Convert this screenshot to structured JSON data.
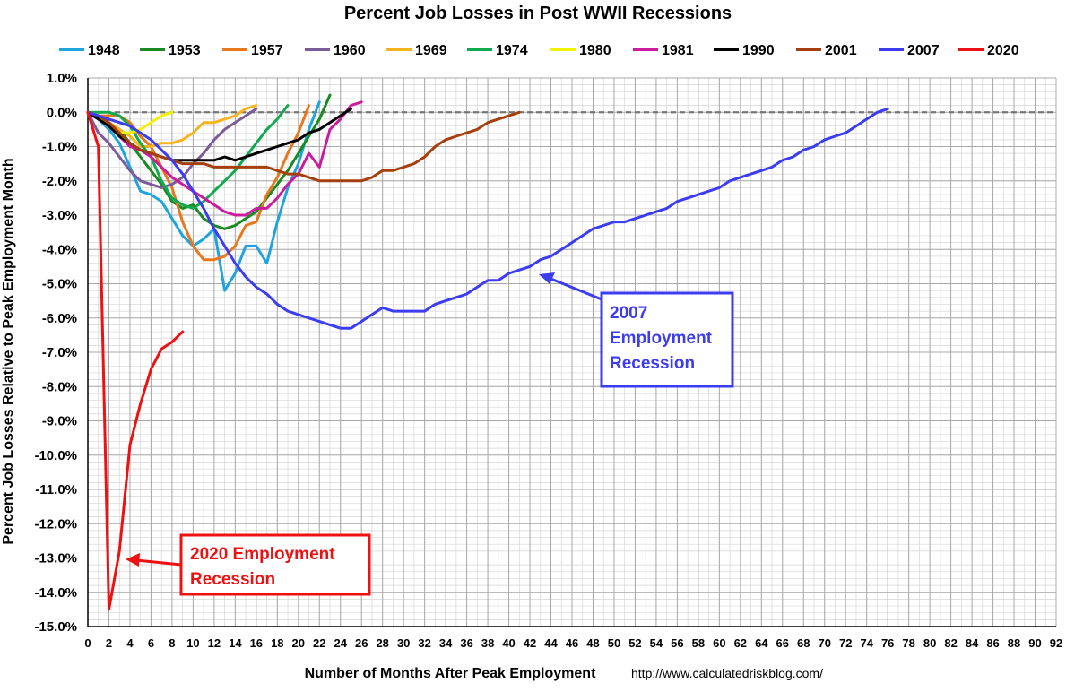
{
  "chart_data": {
    "type": "line",
    "title": "Percent Job Losses in Post WWII Recessions",
    "xlabel": "Number of Months After Peak Employment",
    "ylabel": "Percent Job Losses Relative to Peak Employment Month",
    "source_text": "http://www.calculatedriskblog.com/",
    "xlim": [
      0,
      92
    ],
    "ylim": [
      -15,
      1
    ],
    "x_ticks": [
      "0",
      "2",
      "4",
      "6",
      "8",
      "10",
      "12",
      "14",
      "16",
      "18",
      "20",
      "22",
      "24",
      "26",
      "28",
      "30",
      "32",
      "34",
      "36",
      "38",
      "40",
      "42",
      "44",
      "46",
      "48",
      "50",
      "52",
      "54",
      "56",
      "58",
      "60",
      "62",
      "64",
      "66",
      "68",
      "70",
      "72",
      "74",
      "76",
      "78",
      "80",
      "82",
      "84",
      "86",
      "88",
      "90",
      "92"
    ],
    "y_ticks": [
      "1.0%",
      "0.0%",
      "-1.0%",
      "-2.0%",
      "-3.0%",
      "-4.0%",
      "-5.0%",
      "-6.0%",
      "-7.0%",
      "-8.0%",
      "-9.0%",
      "-10.0%",
      "-11.0%",
      "-12.0%",
      "-13.0%",
      "-14.0%",
      "-15.0%"
    ],
    "grid": true,
    "legend_position": "top",
    "series": [
      {
        "name": "1948",
        "color": "#1fa5dc",
        "values": [
          0,
          -0.2,
          -0.5,
          -0.9,
          -1.6,
          -2.3,
          -2.4,
          -2.6,
          -3.1,
          -3.6,
          -3.9,
          -3.7,
          -3.4,
          -5.2,
          -4.7,
          -3.9,
          -3.9,
          -4.4,
          -3.2,
          -2.2,
          -1.5,
          -0.5,
          0.3
        ]
      },
      {
        "name": "1953",
        "color": "#1a8a22",
        "values": [
          0,
          -0.1,
          -0.3,
          -0.5,
          -0.9,
          -1.3,
          -1.7,
          -2.1,
          -2.6,
          -2.8,
          -2.7,
          -3.1,
          -3.3,
          -3.4,
          -3.3,
          -3.1,
          -2.9,
          -2.5,
          -2.1,
          -1.7,
          -1.2,
          -0.7,
          -0.2,
          0.5
        ]
      },
      {
        "name": "1957",
        "color": "#e8781e",
        "values": [
          0,
          -0.1,
          -0.1,
          -0.1,
          -0.3,
          -0.7,
          -1.0,
          -1.6,
          -2.2,
          -3.2,
          -3.9,
          -4.3,
          -4.3,
          -4.2,
          -3.9,
          -3.3,
          -3.2,
          -2.4,
          -1.9,
          -1.2,
          -0.6,
          0.2
        ]
      },
      {
        "name": "1960",
        "color": "#7a5c9a",
        "values": [
          0,
          -0.6,
          -0.9,
          -1.3,
          -1.7,
          -2.0,
          -2.1,
          -2.2,
          -2.1,
          -1.9,
          -1.5,
          -1.2,
          -0.8,
          -0.5,
          -0.3,
          -0.1,
          0.1
        ]
      },
      {
        "name": "1969",
        "color": "#f5b41e",
        "values": [
          0,
          -0.1,
          -0.3,
          -0.5,
          -0.7,
          -1.0,
          -1.0,
          -0.9,
          -0.9,
          -0.8,
          -0.6,
          -0.3,
          -0.3,
          -0.2,
          -0.1,
          0.1,
          0.2
        ]
      },
      {
        "name": "1974",
        "color": "#12aa4f",
        "values": [
          0,
          0.0,
          0.0,
          -0.1,
          -0.4,
          -0.9,
          -1.3,
          -2.0,
          -2.5,
          -2.7,
          -2.8,
          -2.6,
          -2.3,
          -2.0,
          -1.7,
          -1.3,
          -0.9,
          -0.5,
          -0.2,
          0.2
        ]
      },
      {
        "name": "1980",
        "color": "#f2f200",
        "values": [
          0,
          -0.1,
          -0.3,
          -0.6,
          -0.6,
          -0.5,
          -0.3,
          -0.1,
          0.0
        ]
      },
      {
        "name": "1981",
        "color": "#cc1c9e",
        "values": [
          0,
          -0.2,
          -0.4,
          -0.7,
          -1.0,
          -1.1,
          -1.3,
          -1.6,
          -1.9,
          -2.1,
          -2.3,
          -2.5,
          -2.7,
          -2.9,
          -3.0,
          -3.0,
          -2.8,
          -2.8,
          -2.5,
          -2.1,
          -1.8,
          -1.2,
          -1.6,
          -0.5,
          -0.2,
          0.2,
          0.3
        ]
      },
      {
        "name": "1990",
        "color": "#000000",
        "values": [
          0,
          -0.2,
          -0.4,
          -0.7,
          -0.9,
          -1.1,
          -1.2,
          -1.3,
          -1.4,
          -1.4,
          -1.4,
          -1.4,
          -1.4,
          -1.3,
          -1.4,
          -1.3,
          -1.2,
          -1.1,
          -1.0,
          -0.9,
          -0.8,
          -0.6,
          -0.5,
          -0.3,
          -0.1,
          0.1
        ]
      },
      {
        "name": "2001",
        "color": "#a5400e",
        "values": [
          0,
          -0.1,
          -0.3,
          -0.6,
          -0.9,
          -1.1,
          -1.2,
          -1.3,
          -1.4,
          -1.5,
          -1.5,
          -1.5,
          -1.6,
          -1.6,
          -1.6,
          -1.6,
          -1.6,
          -1.6,
          -1.7,
          -1.8,
          -1.8,
          -1.9,
          -2.0,
          -2.0,
          -2.0,
          -2.0,
          -2.0,
          -1.9,
          -1.7,
          -1.7,
          -1.6,
          -1.5,
          -1.3,
          -1.0,
          -0.8,
          -0.7,
          -0.6,
          -0.5,
          -0.3,
          -0.2,
          -0.1,
          0.0
        ]
      },
      {
        "name": "2007",
        "color": "#3c3cf0",
        "values": [
          0,
          -0.1,
          -0.2,
          -0.3,
          -0.4,
          -0.6,
          -0.8,
          -1.1,
          -1.4,
          -1.8,
          -2.3,
          -2.8,
          -3.4,
          -3.9,
          -4.4,
          -4.8,
          -5.1,
          -5.3,
          -5.6,
          -5.8,
          -5.9,
          -6.0,
          -6.1,
          -6.2,
          -6.3,
          -6.3,
          -6.1,
          -5.9,
          -5.7,
          -5.8,
          -5.8,
          -5.8,
          -5.8,
          -5.6,
          -5.5,
          -5.4,
          -5.3,
          -5.1,
          -4.9,
          -4.9,
          -4.7,
          -4.6,
          -4.5,
          -4.3,
          -4.2,
          -4.0,
          -3.8,
          -3.6,
          -3.4,
          -3.3,
          -3.2,
          -3.2,
          -3.1,
          -3.0,
          -2.9,
          -2.8,
          -2.6,
          -2.5,
          -2.4,
          -2.3,
          -2.2,
          -2.0,
          -1.9,
          -1.8,
          -1.7,
          -1.6,
          -1.4,
          -1.3,
          -1.1,
          -1.0,
          -0.8,
          -0.7,
          -0.6,
          -0.4,
          -0.2,
          0.0,
          0.1
        ]
      },
      {
        "name": "2020",
        "color": "#ee1111",
        "values": [
          0,
          -1.0,
          -14.5,
          -12.8,
          -9.7,
          -8.5,
          -7.5,
          -6.9,
          -6.7,
          -6.4
        ]
      }
    ],
    "annotations": [
      {
        "text": [
          "2007",
          "Employment",
          "Recession"
        ],
        "color": "#3c3cf0"
      },
      {
        "text": [
          "2020 Employment",
          "Recession"
        ],
        "color": "#ee1111"
      }
    ]
  }
}
